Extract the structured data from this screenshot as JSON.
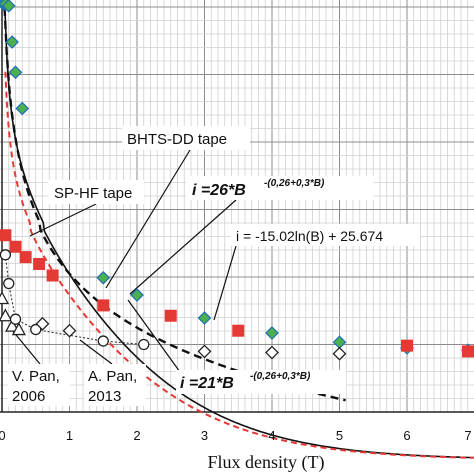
{
  "chart_data": {
    "type": "scatter",
    "xlabel": "Flux density (T)",
    "xlim": [
      0,
      7
    ],
    "x_ticks": [
      "0",
      "1",
      "2",
      "3",
      "4",
      "5",
      "6",
      "7"
    ],
    "grid": true,
    "series": [
      {
        "name": "BHTS-DD tape",
        "marker": "diamond",
        "color": "#4caf50",
        "x": [
          0.02,
          0.05,
          0.1,
          0.15,
          0.2,
          0.3,
          1.5,
          2.0,
          3.0,
          4.0,
          5.0,
          6.0,
          7.0
        ],
        "y": [
          45,
          42,
          38,
          35,
          32.5,
          29.5,
          15.8,
          14.3,
          12.3,
          11.0,
          10.2,
          9.7,
          9.5
        ]
      },
      {
        "name": "SP-HF tape",
        "marker": "square",
        "color": "#e53935",
        "x": [
          0.05,
          0.2,
          0.35,
          0.55,
          0.75,
          1.5,
          2.5,
          3.5,
          6.0,
          7.0
        ],
        "y": [
          19.5,
          18.5,
          17.6,
          17.0,
          16.0,
          13.4,
          12.5,
          11.2,
          9.9,
          9.4
        ]
      },
      {
        "name": "V. Pan, 2006",
        "marker": "triangle",
        "color": "#222222",
        "x": [
          0.0,
          0.05,
          0.15,
          0.25
        ],
        "y": [
          14.0,
          12.5,
          11.6,
          11.3
        ]
      },
      {
        "name": "A. Pan, 2013",
        "marker": "circle",
        "color": "#222222",
        "x": [
          0.05,
          0.1,
          0.2,
          0.5,
          1.5,
          2.1
        ],
        "y": [
          17.8,
          15.3,
          12.2,
          11.3,
          10.3,
          10.0
        ]
      },
      {
        "name": "A. Pan, 2013 (diamonds)",
        "marker": "hollow-diamond",
        "color": "#222222",
        "x": [
          0.6,
          1.0,
          3.0,
          4.0,
          5.0
        ],
        "y": [
          11.8,
          11.2,
          9.4,
          9.3,
          9.2
        ]
      }
    ],
    "fits": [
      {
        "label": "i = -15.02ln(B) + 25.674",
        "style": "black dashed",
        "color": "#111111"
      },
      {
        "label": "i =26*B^-(0,26+0,3*B)",
        "style": "black solid",
        "color": "#111111"
      },
      {
        "label": "i =21*B^-(0,26+0,3*B)",
        "style": "red dashed",
        "color": "#e53935"
      }
    ]
  },
  "annotations": {
    "bhts": "BHTS-DD tape",
    "sphf": "SP-HF tape",
    "eq26_main": "i =26*B",
    "eq26_exp": "-(0,26+0,3*B)",
    "eq21_main": "i =21*B",
    "eq21_exp": "-(0,26+0,3*B)",
    "eqln": "i = -15.02ln(B) + 25.674",
    "vpan_1": "V. Pan,",
    "vpan_2": "2006",
    "apan_1": "A. Pan,",
    "apan_2": "2013"
  }
}
